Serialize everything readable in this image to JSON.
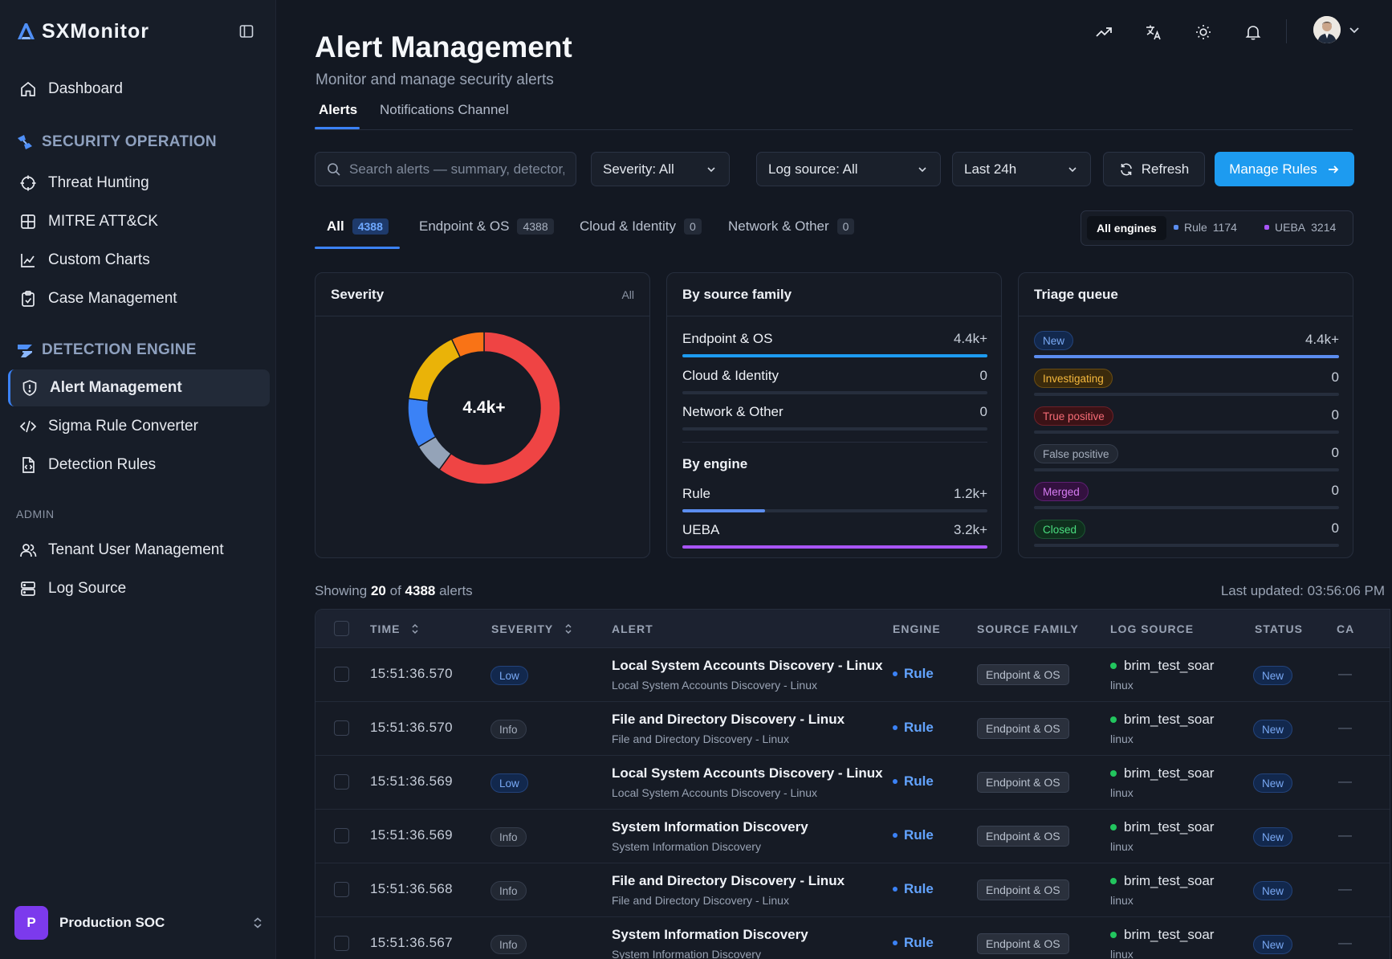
{
  "app": {
    "name": "SXMonitor"
  },
  "sidebar": {
    "dashboard": "Dashboard",
    "sections": [
      {
        "title": "SECURITY OPERATION",
        "items": [
          "Threat Hunting",
          "MITRE ATT&CK",
          "Custom Charts",
          "Case Management"
        ]
      },
      {
        "title": "DETECTION ENGINE",
        "items": [
          "Alert Management",
          "Sigma Rule Converter",
          "Detection Rules"
        ]
      }
    ],
    "admin_label": "ADMIN",
    "admin_items": [
      "Tenant User Management",
      "Log Source"
    ],
    "tenant": {
      "initial": "P",
      "name": "Production SOC"
    }
  },
  "header": {
    "title": "Alert Management",
    "subtitle": "Monitor and manage security alerts",
    "tabs": [
      "Alerts",
      "Notifications Channel"
    ]
  },
  "filters": {
    "search_placeholder": "Search alerts — summary, detector, host, user…",
    "severity": "Severity: All",
    "log_source": "Log source: All",
    "time_range": "Last 24h",
    "refresh": "Refresh",
    "manage_rules": "Manage Rules"
  },
  "category_tabs": [
    {
      "label": "All",
      "count": "4388"
    },
    {
      "label": "Endpoint & OS",
      "count": "4388"
    },
    {
      "label": "Cloud & Identity",
      "count": "0"
    },
    {
      "label": "Network & Other",
      "count": "0"
    }
  ],
  "engines": {
    "all": "All engines",
    "rule": {
      "label": "Rule",
      "count": "1174",
      "color": "#5b8def"
    },
    "ueba": {
      "label": "UEBA",
      "count": "3214",
      "color": "#a855f7"
    }
  },
  "severity_card": {
    "title": "Severity",
    "filter": "All",
    "center": "4.4k+",
    "segments": [
      {
        "share": 0.6,
        "color": "#ef4444"
      },
      {
        "share": 0.065,
        "color": "#94a3b8"
      },
      {
        "share": 0.105,
        "color": "#3b82f6"
      },
      {
        "share": 0.16,
        "color": "#eab308"
      },
      {
        "share": 0.07,
        "color": "#f97316"
      }
    ]
  },
  "source_card": {
    "title": "By source family",
    "families": [
      {
        "label": "Endpoint & OS",
        "value": "4.4k+",
        "fraction": 1.0,
        "color": "#1d9bf0"
      },
      {
        "label": "Cloud & Identity",
        "value": "0",
        "fraction": 0,
        "color": "#1d9bf0"
      },
      {
        "label": "Network & Other",
        "value": "0",
        "fraction": 0,
        "color": "#1d9bf0"
      }
    ],
    "engine_title": "By engine",
    "engines": [
      {
        "label": "Rule",
        "value": "1.2k+",
        "fraction": 0.27,
        "color": "#5b8def"
      },
      {
        "label": "UEBA",
        "value": "3.2k+",
        "fraction": 1.0,
        "color": "#a855f7"
      }
    ]
  },
  "triage_card": {
    "title": "Triage queue",
    "rows": [
      {
        "label": "New",
        "value": "4.4k+",
        "fraction": 1.0,
        "bg": "#12284d",
        "border": "#23437a",
        "fg": "#79a9f5",
        "bar": "#5b8def"
      },
      {
        "label": "Investigating",
        "value": "0",
        "fraction": 0,
        "bg": "#3a2a0c",
        "border": "#6b4d12",
        "fg": "#f5b83d",
        "bar": "#5b8def"
      },
      {
        "label": "True positive",
        "value": "0",
        "fraction": 0,
        "bg": "#3b1216",
        "border": "#6e2129",
        "fg": "#f56b75",
        "bar": "#5b8def"
      },
      {
        "label": "False positive",
        "value": "0",
        "fraction": 0,
        "bg": "#222833",
        "border": "#343c4b",
        "fg": "#a5aebd",
        "bar": "#5b8def"
      },
      {
        "label": "Merged",
        "value": "0",
        "fraction": 0,
        "bg": "#33113f",
        "border": "#5e1f72",
        "fg": "#d67cf2",
        "bar": "#5b8def"
      },
      {
        "label": "Closed",
        "value": "0",
        "fraction": 0,
        "bg": "#0f2f1d",
        "border": "#1c5533",
        "fg": "#4ade80",
        "bar": "#5b8def"
      }
    ]
  },
  "table": {
    "showing_prefix": "Showing",
    "showing_count": "20",
    "showing_of": "of",
    "showing_total": "4388",
    "showing_suffix": "alerts",
    "last_updated": "Last updated: 03:56:06 PM",
    "columns": [
      "TIME",
      "SEVERITY",
      "ALERT",
      "ENGINE",
      "SOURCE FAMILY",
      "LOG SOURCE",
      "STATUS",
      "CA"
    ],
    "rows": [
      {
        "time": "15:51:36.570",
        "severity": "Low",
        "title": "Local System Accounts Discovery - Linux",
        "sub": "Local System Accounts Discovery - Linux",
        "engine": "Rule",
        "source_family": "Endpoint & OS",
        "log_source": "brim_test_soar",
        "log_sub": "linux",
        "status": "New",
        "case": "—"
      },
      {
        "time": "15:51:36.570",
        "severity": "Info",
        "title": "File and Directory Discovery - Linux",
        "sub": "File and Directory Discovery - Linux",
        "engine": "Rule",
        "source_family": "Endpoint & OS",
        "log_source": "brim_test_soar",
        "log_sub": "linux",
        "status": "New",
        "case": "—"
      },
      {
        "time": "15:51:36.569",
        "severity": "Low",
        "title": "Local System Accounts Discovery - Linux",
        "sub": "Local System Accounts Discovery - Linux",
        "engine": "Rule",
        "source_family": "Endpoint & OS",
        "log_source": "brim_test_soar",
        "log_sub": "linux",
        "status": "New",
        "case": "—"
      },
      {
        "time": "15:51:36.569",
        "severity": "Info",
        "title": "System Information Discovery",
        "sub": "System Information Discovery",
        "engine": "Rule",
        "source_family": "Endpoint & OS",
        "log_source": "brim_test_soar",
        "log_sub": "linux",
        "status": "New",
        "case": "—"
      },
      {
        "time": "15:51:36.568",
        "severity": "Info",
        "title": "File and Directory Discovery - Linux",
        "sub": "File and Directory Discovery - Linux",
        "engine": "Rule",
        "source_family": "Endpoint & OS",
        "log_source": "brim_test_soar",
        "log_sub": "linux",
        "status": "New",
        "case": "—"
      },
      {
        "time": "15:51:36.567",
        "severity": "Info",
        "title": "System Information Discovery",
        "sub": "System Information Discovery",
        "engine": "Rule",
        "source_family": "Endpoint & OS",
        "log_source": "brim_test_soar",
        "log_sub": "linux",
        "status": "New",
        "case": "—"
      }
    ]
  }
}
